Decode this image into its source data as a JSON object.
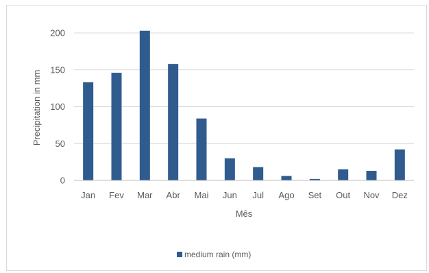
{
  "chart_data": {
    "type": "bar",
    "categories": [
      "Jan",
      "Fev",
      "Mar",
      "Abr",
      "Mai",
      "Jun",
      "Jul",
      "Ago",
      "Set",
      "Out",
      "Nov",
      "Dez"
    ],
    "series": [
      {
        "name": "medium rain (mm)",
        "values": [
          133,
          146,
          203,
          158,
          84,
          30,
          18,
          6,
          2,
          15,
          13,
          42
        ],
        "color": "#2f5b8f"
      }
    ],
    "title": "",
    "xlabel": "Mês",
    "ylabel": "Precipitation in mm",
    "ylim": [
      0,
      200
    ],
    "yticks": [
      0,
      50,
      100,
      150,
      200
    ],
    "grid": true,
    "legend_position": "bottom",
    "colors": {
      "bar": "#2f5b8f",
      "gridline": "#d9d9d9",
      "axis": "#bfbfbf",
      "text": "#595959"
    }
  }
}
